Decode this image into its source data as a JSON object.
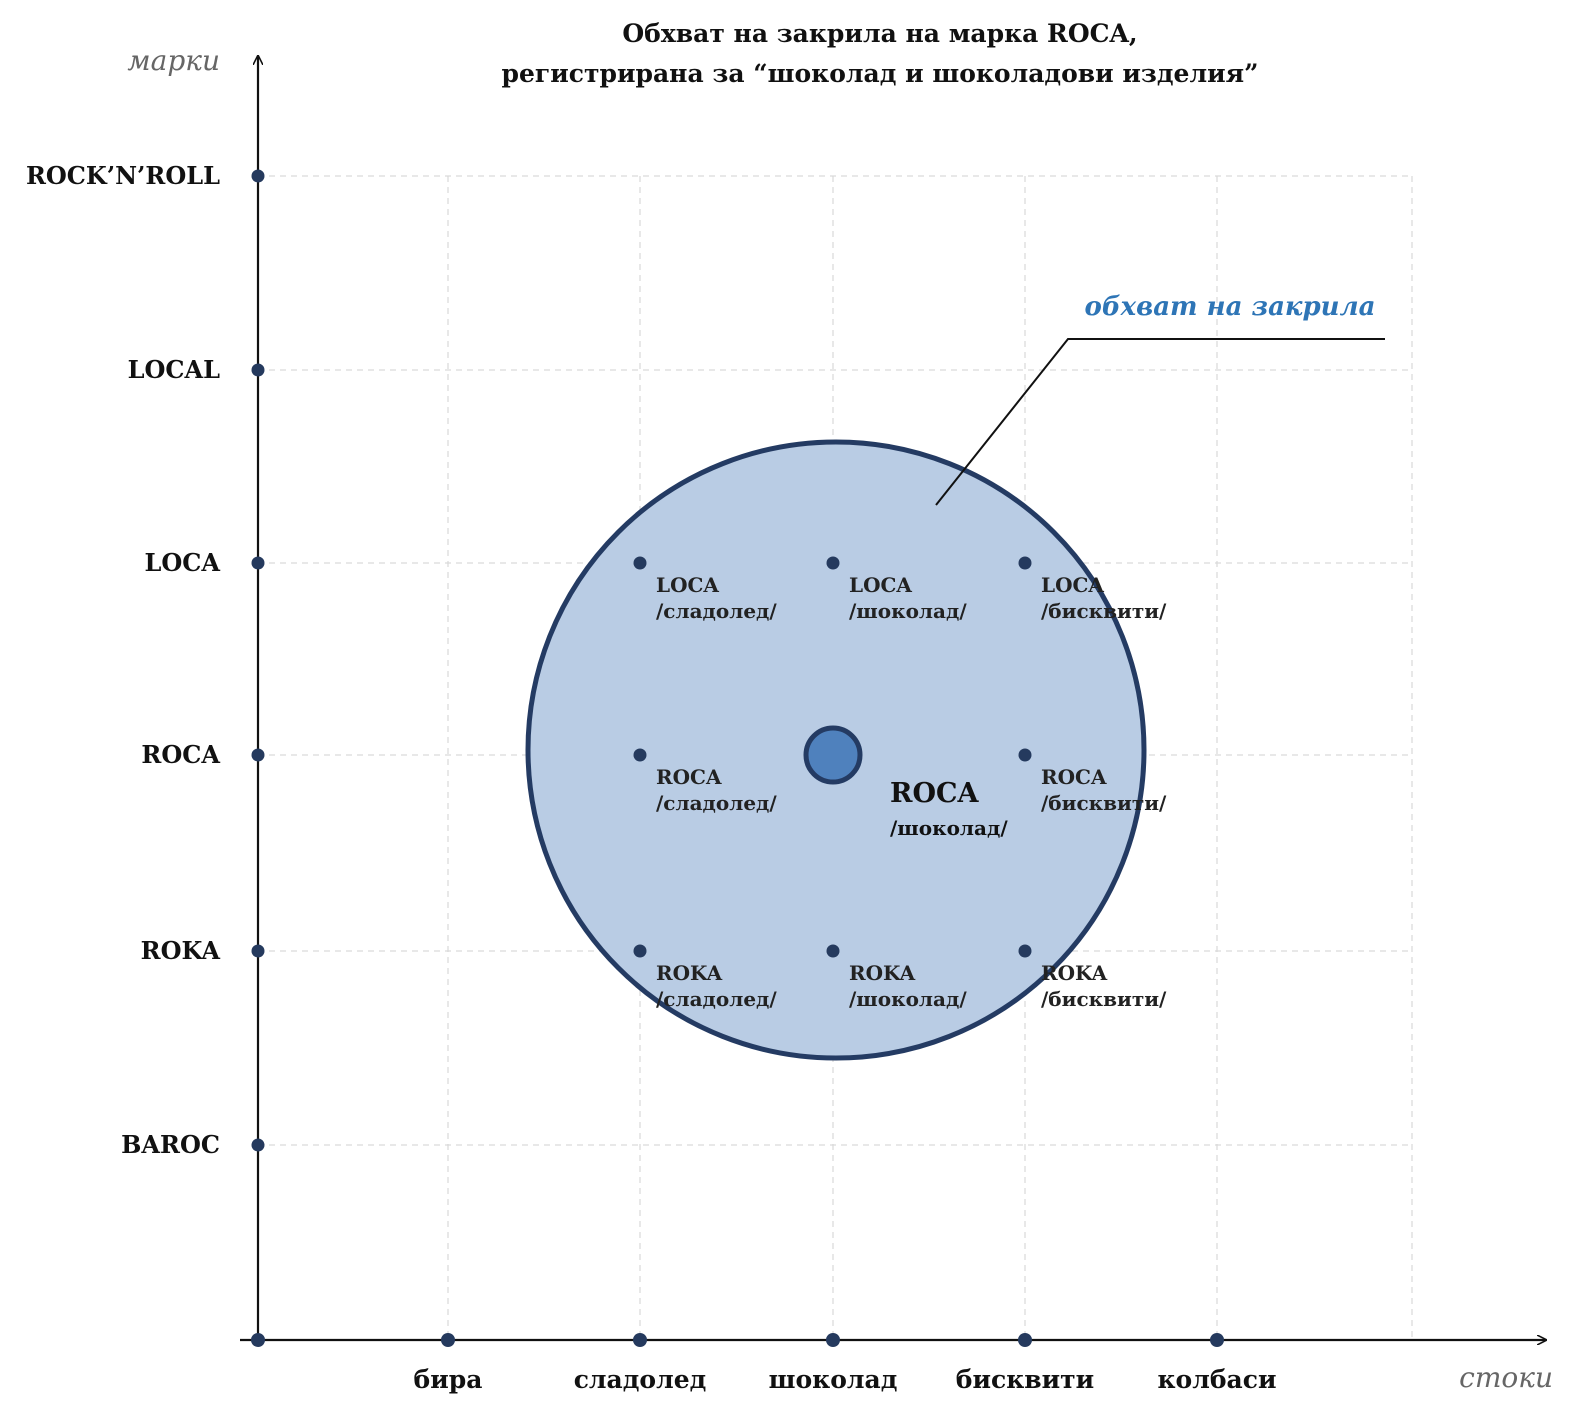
{
  "title": {
    "line1": "Обхват на закрила на марка ROCA,",
    "line2": "регистрирана за “шоколад и шоколадови изделия”"
  },
  "axes": {
    "y_name": "марки",
    "x_name": "стоки"
  },
  "brands": [
    "ROCK’N’ROLL",
    "LOCAL",
    "LOCA",
    "ROCA",
    "ROKA",
    "BAROC"
  ],
  "goods": [
    "бира",
    "сладолед",
    "шоколад",
    "бисквити",
    "колбаси"
  ],
  "points": [
    {
      "brand": "LOCA",
      "goods": "сладолед",
      "name": "LOCA",
      "sub": "/сладолед/"
    },
    {
      "brand": "LOCA",
      "goods": "шоколад",
      "name": "LOCA",
      "sub": "/шоколад/"
    },
    {
      "brand": "LOCA",
      "goods": "бисквити",
      "name": "LOCA",
      "sub": "/бисквити/"
    },
    {
      "brand": "ROCA",
      "goods": "сладолед",
      "name": "ROCA",
      "sub": "/сладолед/"
    },
    {
      "brand": "ROCA",
      "goods": "бисквити",
      "name": "ROCA",
      "sub": "/бисквити/"
    },
    {
      "brand": "ROKA",
      "goods": "сладолед",
      "name": "ROKA",
      "sub": "/сладолед/"
    },
    {
      "brand": "ROKA",
      "goods": "шоколад",
      "name": "ROKA",
      "sub": "/шоколад/"
    },
    {
      "brand": "ROKA",
      "goods": "бисквити",
      "name": "ROKA",
      "sub": "/бисквити/"
    }
  ],
  "center": {
    "brand": "ROCA",
    "goods": "шоколад",
    "name": "ROCA",
    "sub": "/шоколад/"
  },
  "callout": {
    "label": "обхват на закрила"
  },
  "colors": {
    "dot": "#253a5e",
    "circle_fill": "#b9cce4",
    "circle_stroke": "#243b63",
    "center_fill": "#4f81bd",
    "callout_text": "#2e75b6",
    "grid": "#d9d9d9",
    "axis": "#111111"
  }
}
